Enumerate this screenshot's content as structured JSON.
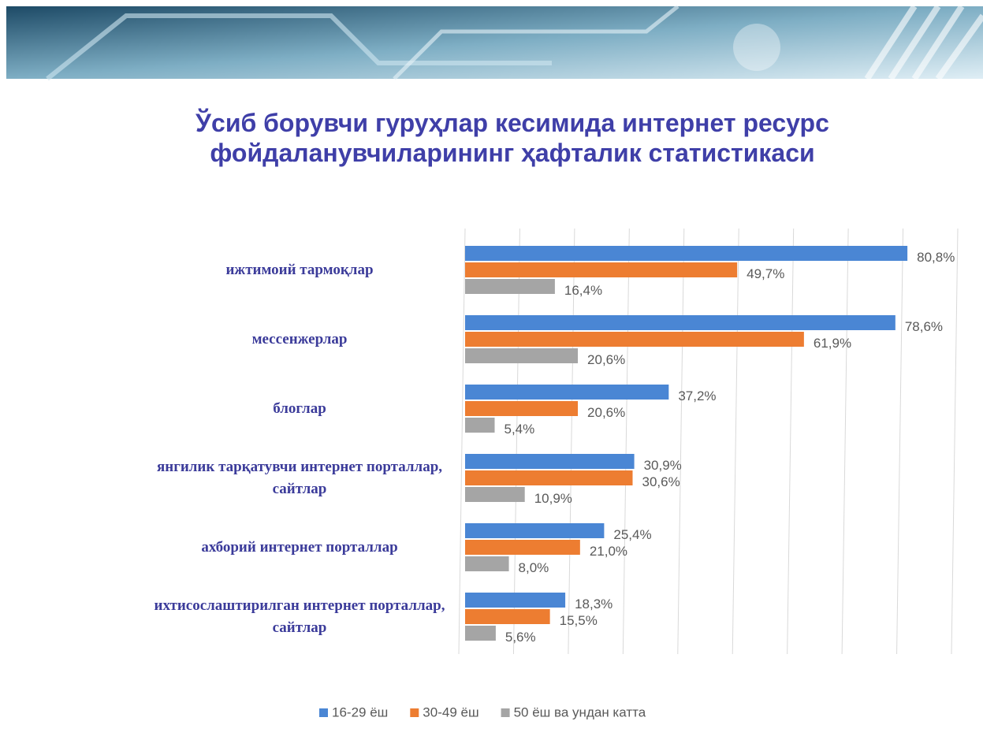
{
  "chart_data": {
    "type": "bar",
    "orientation": "horizontal",
    "title": [
      "Ўсиб борувчи гуруҳлар кесимида интернет ресурс",
      "фойдаланувчиларининг ҳафталик статистикаси"
    ],
    "categories": [
      "ижтимоий тармоқлар",
      "мессенжерлар",
      "блоглар",
      "янгилик тарқатувчи интернет порталлар, сайтлар",
      "ахборий интернет порталлар",
      "ихтисослаштирилган интернет порталлар, сайтлар"
    ],
    "series": [
      {
        "name": "16-29 ёш",
        "color": "#4a86d4",
        "values": [
          80.8,
          78.6,
          37.2,
          30.9,
          25.4,
          18.3
        ],
        "value_labels": [
          "80,8%",
          "78,6%",
          "37,2%",
          "30,9%",
          "25,4%",
          "18,3%"
        ]
      },
      {
        "name": "30-49 ёш",
        "color": "#ed7d31",
        "values": [
          49.7,
          61.9,
          20.6,
          30.6,
          21.0,
          15.5
        ],
        "value_labels": [
          "49,7%",
          "61,9%",
          "20,6%",
          "30,6%",
          "21,0%",
          "15,5%"
        ]
      },
      {
        "name": "50 ёш ва ундан катта",
        "color": "#a5a5a5",
        "values": [
          16.4,
          20.6,
          5.4,
          10.9,
          8.0,
          5.6
        ],
        "value_labels": [
          "16,4%",
          "20,6%",
          "5,4%",
          "10,9%",
          "8,0%",
          "5,6%"
        ]
      }
    ],
    "xlim": [
      0,
      90
    ],
    "xticks": [
      0,
      10,
      20,
      30,
      40,
      50,
      60,
      70,
      80,
      90
    ],
    "grid": true,
    "legend": "bottom"
  }
}
